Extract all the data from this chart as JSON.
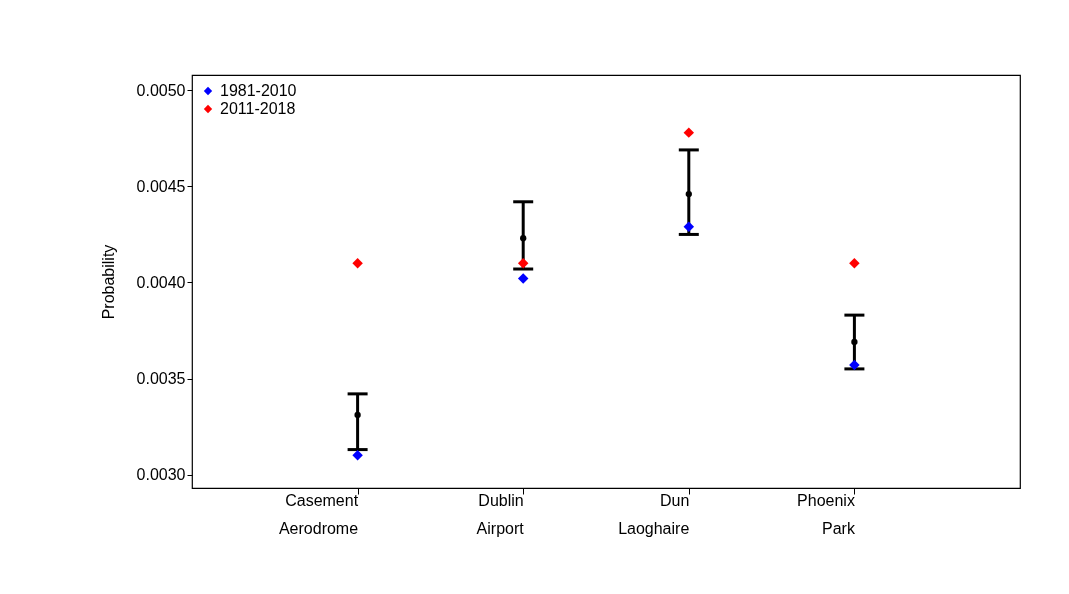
{
  "chart_data": {
    "type": "scatter",
    "ylabel": "Probability",
    "categories": [
      "Casement Aerodrome",
      "Dublin Airport",
      "Dun Laoghaire",
      "Phoenix Park"
    ],
    "series": [
      {
        "color": "#000000",
        "marker": "circle",
        "values": [
          0.00331,
          0.00423,
          0.00446,
          0.00369
        ],
        "errors": [
          [
            0.00313,
            0.00342
          ],
          [
            0.00407,
            0.00442
          ],
          [
            0.00425,
            0.00469
          ],
          [
            0.00355,
            0.00383
          ]
        ]
      },
      {
        "name": "1981-2010",
        "color": "#0000ff",
        "marker": "diamond",
        "values": [
          0.0031,
          0.00402,
          0.00429,
          0.00357
        ]
      },
      {
        "name": "2011-2018",
        "color": "#ff0000",
        "marker": "diamond",
        "values": [
          0.0041,
          0.0041,
          0.00478,
          0.0041
        ]
      }
    ],
    "ylim": [
      0.00293,
      0.00508
    ],
    "yticks": [
      {
        "value": 0.003,
        "label": "0.0030"
      },
      {
        "value": 0.0035,
        "label": "0.0035"
      },
      {
        "value": 0.004,
        "label": "0.0040"
      },
      {
        "value": 0.0045,
        "label": "0.0045"
      },
      {
        "value": 0.005,
        "label": "0.0050"
      }
    ],
    "grid": false,
    "legend": "top left"
  }
}
